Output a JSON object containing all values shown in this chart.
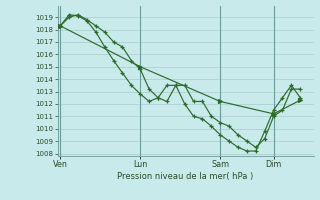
{
  "background_color": "#c8eaea",
  "grid_color": "#a8cccc",
  "line_color": "#2d6a2d",
  "vline_color": "#6a9a9a",
  "xlabel": "Pression niveau de la mer( hPa )",
  "xtick_labels": [
    "Ven",
    "Lun",
    "Sam",
    "Dim"
  ],
  "xtick_positions": [
    0,
    9,
    18,
    24
  ],
  "xlim": [
    -0.3,
    28.5
  ],
  "ylim_bottom": 1007.8,
  "ylim_top": 1019.9,
  "yticks": [
    1008,
    1009,
    1010,
    1011,
    1012,
    1013,
    1014,
    1015,
    1016,
    1017,
    1018,
    1019
  ],
  "line1_x": [
    0,
    1,
    2,
    3,
    4,
    5,
    6,
    7,
    8,
    9,
    10,
    11,
    12,
    13,
    14,
    15,
    16,
    17,
    18,
    19,
    20,
    21,
    22,
    23,
    24,
    25,
    26,
    27
  ],
  "line1_y": [
    1018.3,
    1019.0,
    1019.2,
    1018.8,
    1018.3,
    1017.8,
    1017.0,
    1016.6,
    1015.5,
    1014.8,
    1013.2,
    1012.5,
    1012.2,
    1013.5,
    1013.5,
    1012.2,
    1012.2,
    1011.0,
    1010.5,
    1010.2,
    1009.5,
    1009.0,
    1008.5,
    1009.2,
    1011.0,
    1011.5,
    1013.2,
    1013.2
  ],
  "line2_x": [
    0,
    1,
    2,
    3,
    4,
    5,
    6,
    7,
    8,
    9,
    10,
    11,
    12,
    13,
    14,
    15,
    16,
    17,
    18,
    19,
    20,
    21,
    22,
    23,
    24,
    25,
    26,
    27
  ],
  "line2_y": [
    1018.3,
    1019.2,
    1019.1,
    1018.7,
    1017.8,
    1016.6,
    1015.5,
    1014.5,
    1013.5,
    1012.8,
    1012.2,
    1012.5,
    1013.5,
    1013.5,
    1012.0,
    1011.0,
    1010.8,
    1010.2,
    1009.5,
    1009.0,
    1008.5,
    1008.2,
    1008.2,
    1009.8,
    1011.5,
    1012.5,
    1013.5,
    1012.5
  ],
  "line3_x": [
    0,
    9,
    18,
    24,
    27
  ],
  "line3_y": [
    1018.3,
    1015.0,
    1012.2,
    1011.2,
    1012.3
  ]
}
